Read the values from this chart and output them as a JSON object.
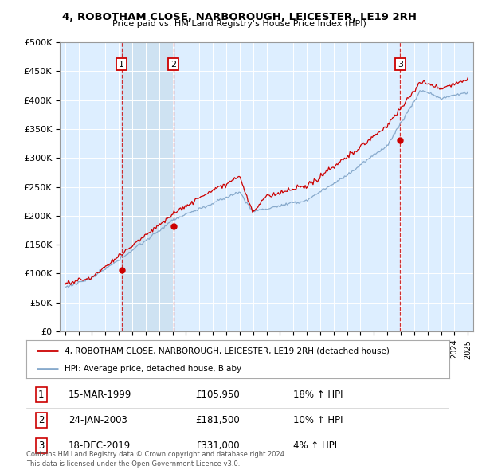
{
  "title1": "4, ROBOTHAM CLOSE, NARBOROUGH, LEICESTER, LE19 2RH",
  "title2": "Price paid vs. HM Land Registry's House Price Index (HPI)",
  "ylabel_ticks": [
    "£0",
    "£50K",
    "£100K",
    "£150K",
    "£200K",
    "£250K",
    "£300K",
    "£350K",
    "£400K",
    "£450K",
    "£500K"
  ],
  "ytick_values": [
    0,
    50000,
    100000,
    150000,
    200000,
    250000,
    300000,
    350000,
    400000,
    450000,
    500000
  ],
  "xlim": [
    1994.6,
    2025.4
  ],
  "ylim": [
    0,
    500000
  ],
  "sales": [
    {
      "date_num": 1999.21,
      "price": 105950,
      "label": "1"
    },
    {
      "date_num": 2003.07,
      "price": 181500,
      "label": "2"
    },
    {
      "date_num": 2019.96,
      "price": 331000,
      "label": "3"
    }
  ],
  "legend_entries": [
    "4, ROBOTHAM CLOSE, NARBOROUGH, LEICESTER, LE19 2RH (detached house)",
    "HPI: Average price, detached house, Blaby"
  ],
  "table_rows": [
    {
      "num": "1",
      "date": "15-MAR-1999",
      "price": "£105,950",
      "hpi": "18% ↑ HPI"
    },
    {
      "num": "2",
      "date": "24-JAN-2003",
      "price": "£181,500",
      "hpi": "10% ↑ HPI"
    },
    {
      "num": "3",
      "date": "18-DEC-2019",
      "price": "£331,000",
      "hpi": "4% ↑ HPI"
    }
  ],
  "footer": "Contains HM Land Registry data © Crown copyright and database right 2024.\nThis data is licensed under the Open Government Licence v3.0.",
  "line_color_red": "#cc0000",
  "line_color_blue": "#88aacc",
  "shade_color": "#cce0f0",
  "background_color": "#ffffff",
  "grid_color": "#cccccc",
  "plot_bg_color": "#ddeeff"
}
